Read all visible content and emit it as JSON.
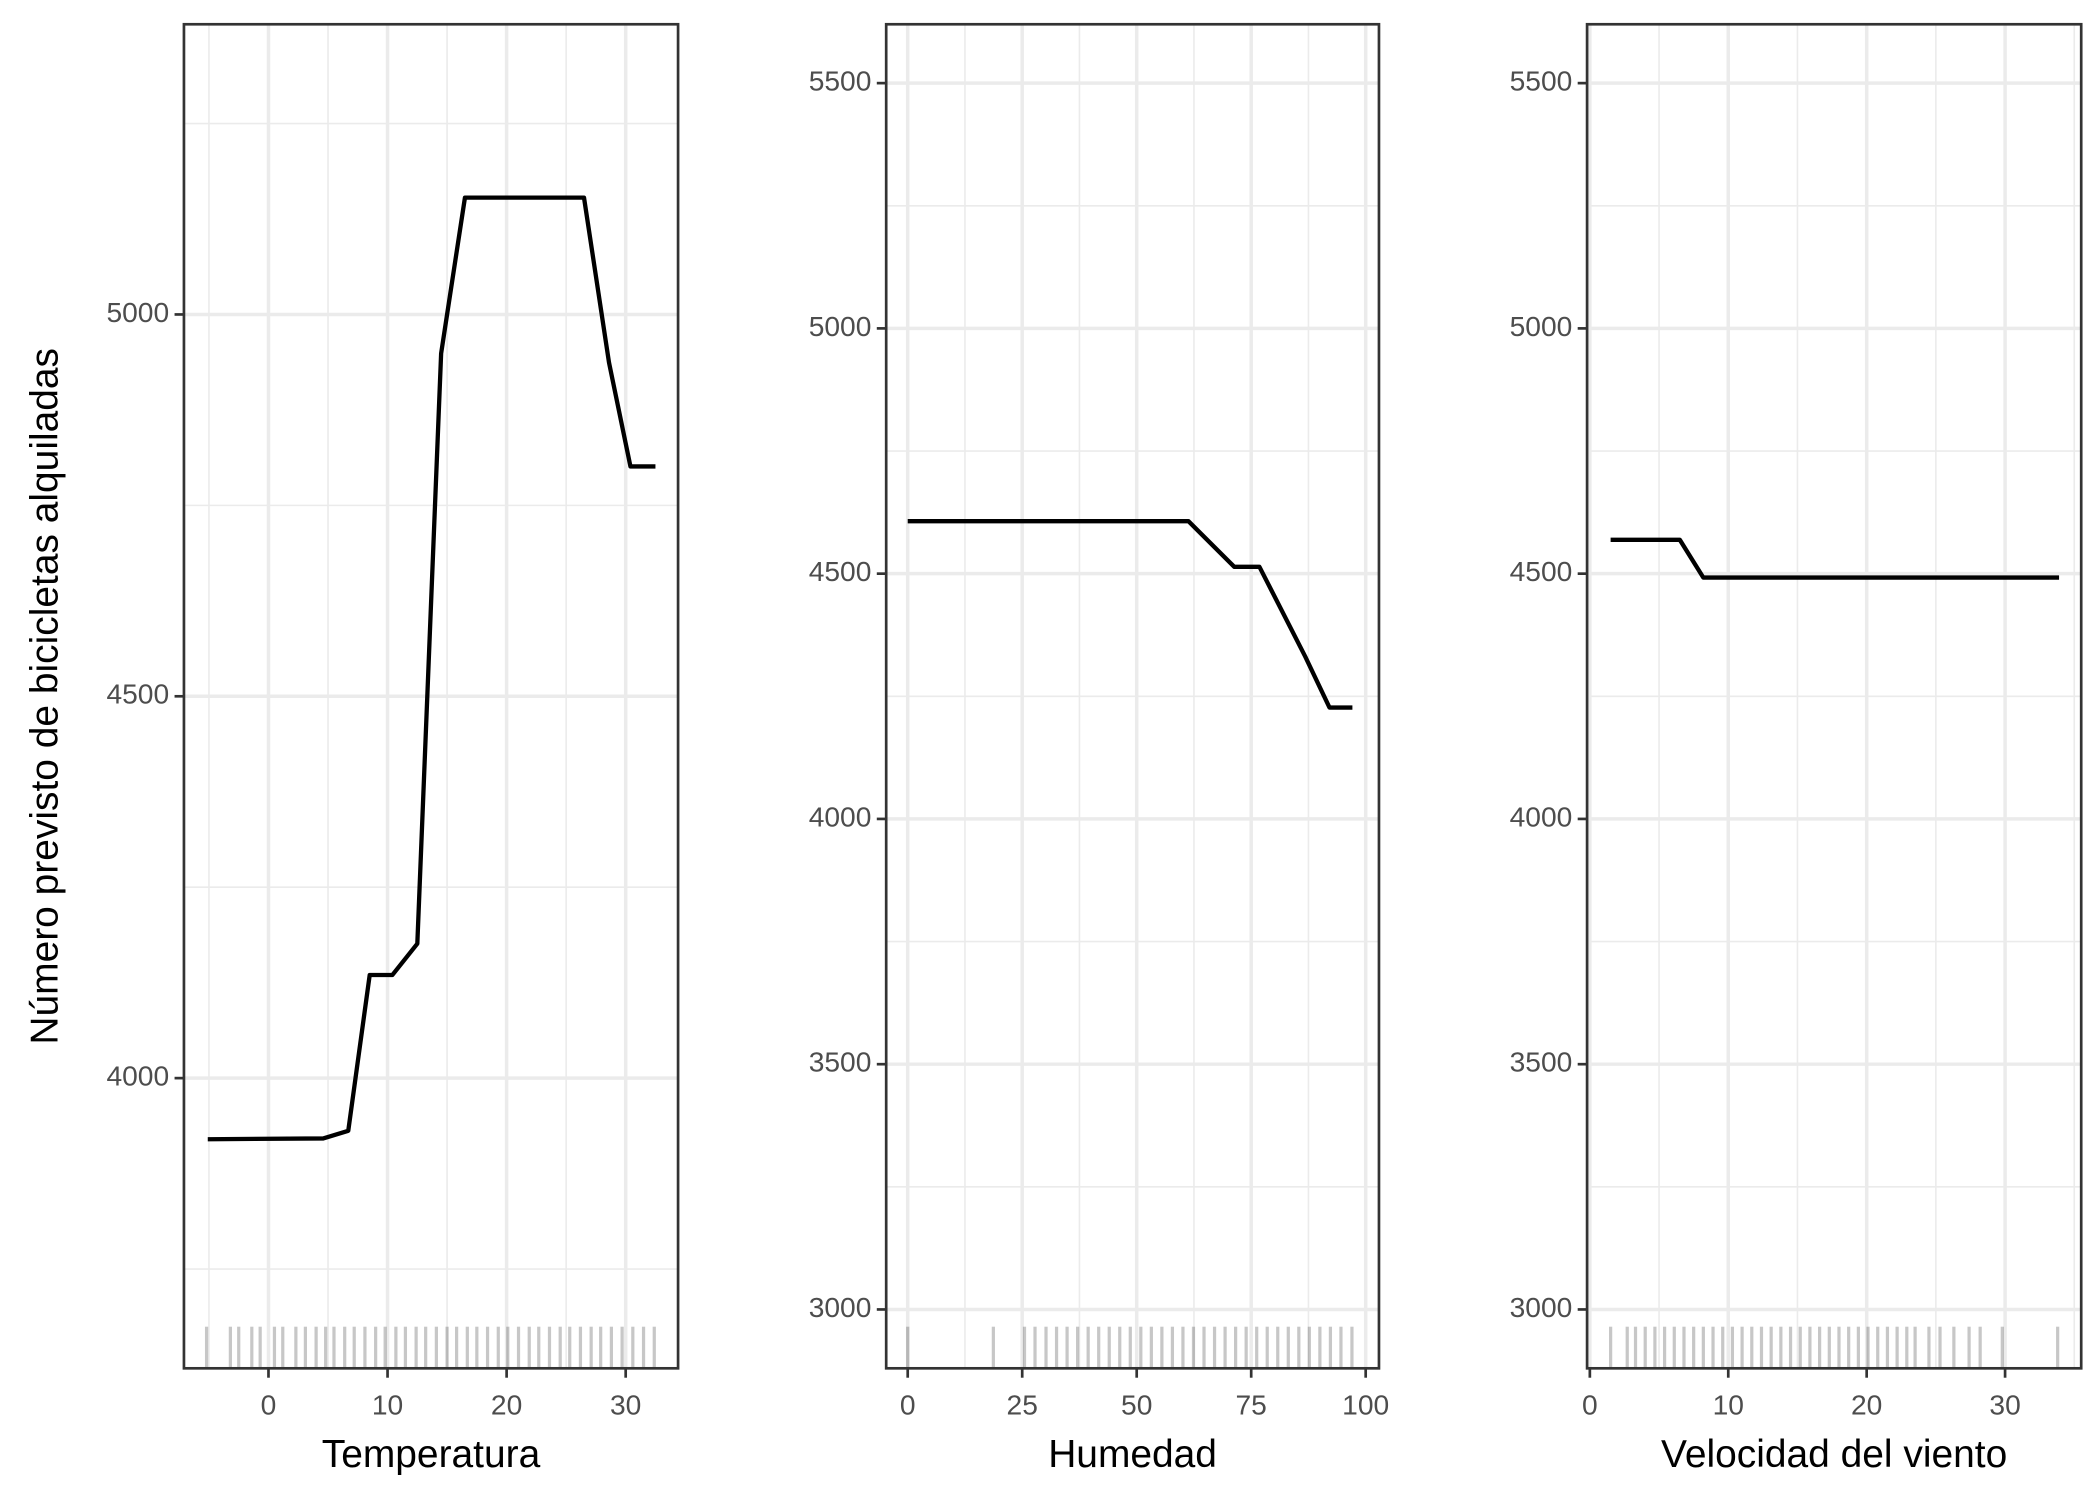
{
  "chart_data": [
    {
      "type": "line",
      "xlabel": "Temperatura",
      "ylabel": "Número previsto de bicicletas alquiladas",
      "x": [
        -5.1,
        4.6,
        6.7,
        8.5,
        10.4,
        12.5,
        14.5,
        16.5,
        26.5,
        28.6,
        30.4,
        32.5
      ],
      "values": [
        3920,
        3921,
        3931,
        4135,
        4135,
        4176,
        4949,
        5153,
        5153,
        4937,
        4801,
        4801
      ],
      "color": "#000000",
      "xlim": [
        -7.1,
        34.4
      ],
      "ylim": [
        3620,
        5380
      ],
      "xticks": [
        0,
        10,
        20,
        30
      ],
      "yticks": [
        4000,
        4500,
        5000
      ],
      "grid": true,
      "rug": [
        -5.2,
        -3.2,
        -2.5,
        -1.4,
        -0.7,
        0.5,
        1.2,
        2.3,
        3.1,
        4.0,
        4.8,
        5.5,
        6.4,
        7.2,
        8.1,
        9.0,
        9.8,
        10.7,
        11.5,
        12.4,
        13.2,
        14.1,
        15.0,
        15.8,
        16.7,
        17.5,
        18.4,
        19.3,
        20.1,
        21.0,
        21.9,
        22.7,
        23.6,
        24.5,
        25.3,
        26.2,
        27.1,
        27.9,
        28.8,
        29.7,
        30.6,
        31.5,
        32.4
      ]
    },
    {
      "type": "line",
      "xlabel": "Humedad",
      "x": [
        0,
        61.3,
        71.3,
        76.8,
        86.8,
        92.1,
        97.1
      ],
      "values": [
        4607,
        4607,
        4514,
        4514,
        4331,
        4227,
        4227
      ],
      "color": "#000000",
      "xlim": [
        -4.7,
        102.9
      ],
      "ylim": [
        2880,
        5620
      ],
      "xticks": [
        0,
        25,
        50,
        75,
        100
      ],
      "yticks": [
        3000,
        3500,
        4000,
        4500,
        5000,
        5500
      ],
      "grid": true,
      "rug": [
        0,
        18.7,
        25.5,
        27.8,
        30.2,
        32.5,
        34.8,
        37.1,
        39.4,
        41.7,
        44,
        46.3,
        48.6,
        50.9,
        53.2,
        55.5,
        57.8,
        60.1,
        62.4,
        64.7,
        67,
        69.3,
        71.6,
        73.9,
        76.2,
        78.5,
        80.8,
        83.1,
        85.4,
        87.7,
        90,
        92.3,
        94.6,
        97
      ]
    },
    {
      "type": "line",
      "xlabel": "Velocidad del viento",
      "x": [
        1.5,
        6.5,
        8.2,
        33.9
      ],
      "values": [
        4569,
        4569,
        4492,
        4492
      ],
      "color": "#000000",
      "xlim": [
        -0.2,
        35.5
      ],
      "ylim": [
        2880,
        5620
      ],
      "xticks": [
        0,
        10,
        20,
        30
      ],
      "yticks": [
        3000,
        3500,
        4000,
        4500,
        5000,
        5500
      ],
      "grid": true,
      "rug": [
        1.5,
        2.7,
        3.3,
        4,
        4.7,
        5.4,
        6.1,
        6.8,
        7.5,
        8.2,
        8.9,
        9.6,
        10.3,
        11,
        11.7,
        12.4,
        13.1,
        13.8,
        14.5,
        15.2,
        15.9,
        16.6,
        17.3,
        18,
        18.7,
        19.4,
        20.1,
        20.8,
        21.5,
        22.2,
        22.9,
        23.5,
        24.5,
        25.3,
        26.3,
        27.4,
        28.2,
        29.8,
        33.8
      ]
    }
  ]
}
